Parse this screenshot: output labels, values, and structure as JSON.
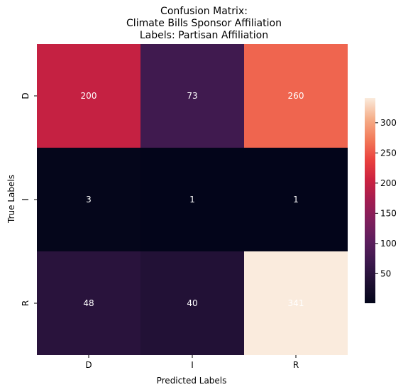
{
  "chart_data": {
    "type": "heatmap",
    "title_lines": [
      "Confusion Matrix:",
      "Climate Bills Sponsor Affiliation",
      "Labels: Partisan Affiliation"
    ],
    "xlabel": "Predicted Labels",
    "ylabel": "True Labels",
    "x_categories": [
      "D",
      "I",
      "R"
    ],
    "y_categories": [
      "D",
      "I",
      "R"
    ],
    "values": [
      [
        200,
        73,
        260
      ],
      [
        3,
        1,
        1
      ],
      [
        48,
        40,
        341
      ]
    ],
    "colormap": "rocket",
    "color_range": [
      1,
      341
    ],
    "colorbar_ticks": [
      50,
      100,
      150,
      200,
      250,
      300
    ],
    "colorbar_placement": "right",
    "annotation_color": "#ffffff",
    "grid": false
  }
}
